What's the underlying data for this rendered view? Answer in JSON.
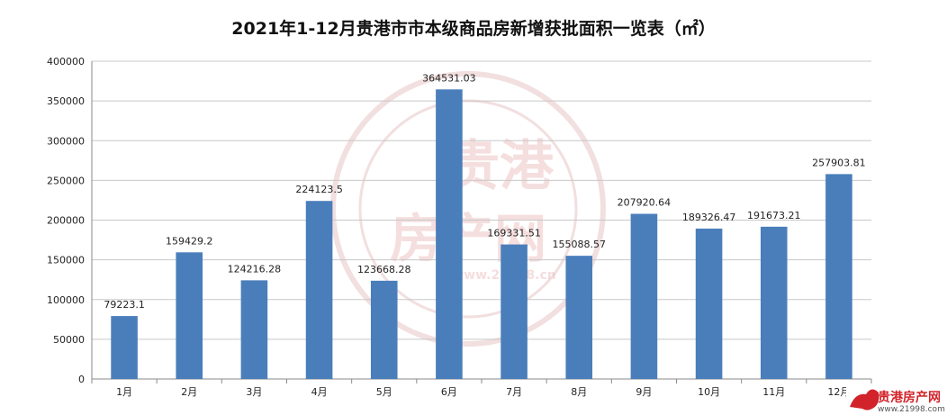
{
  "chart_data": {
    "type": "bar",
    "title": "2021年1-12月贵港市市本级商品房新增获批面积一览表（㎡）",
    "categories": [
      "1月",
      "2月",
      "3月",
      "4月",
      "5月",
      "6月",
      "7月",
      "8月",
      "9月",
      "10月",
      "11月",
      "12月"
    ],
    "values": [
      79223.1,
      159429.2,
      124216.28,
      224123.5,
      123668.28,
      364531.03,
      169331.51,
      155088.57,
      207920.64,
      189326.47,
      191673.21,
      257903.81
    ],
    "value_labels": [
      "79223.1",
      "159429.2",
      "124216.28",
      "224123.5",
      "123668.28",
      "364531.03",
      "169331.51",
      "155088.57",
      "207920.64",
      "189326.47",
      "191673.21",
      "257903.81"
    ],
    "ylim": [
      0,
      400000
    ],
    "yticks": [
      0,
      50000,
      100000,
      150000,
      200000,
      250000,
      300000,
      350000,
      400000
    ],
    "grid": true,
    "bar_color": "#4a7ebb"
  },
  "watermark": {
    "text_top": "贵港",
    "text_bottom": "房产网",
    "url": "www.21998.cn"
  },
  "logo": {
    "name": "贵港房产网",
    "url": "www.21998.com"
  }
}
